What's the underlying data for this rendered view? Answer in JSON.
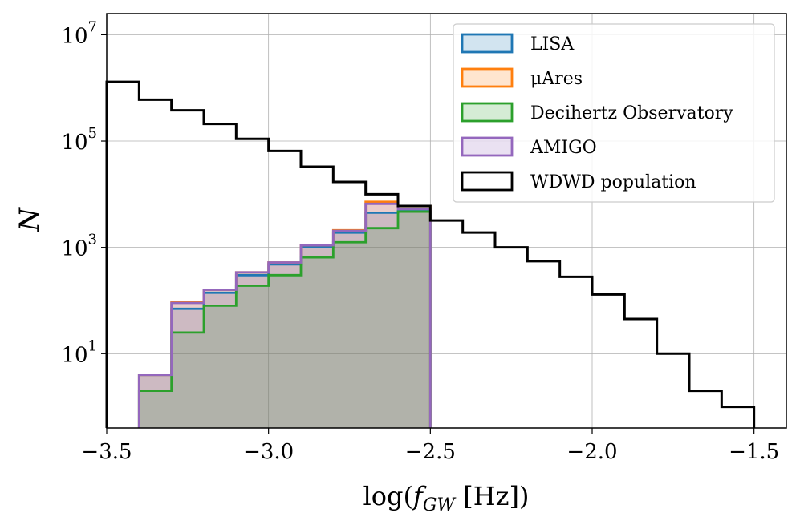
{
  "chart_data": {
    "type": "histogram",
    "xlabel": "log(f_GW [Hz])",
    "ylabel": "N",
    "xlim": [
      -3.5,
      -1.4
    ],
    "ylim": [
      0.4,
      25000000
    ],
    "yscale": "log",
    "grid": true,
    "legend_position": "top-right",
    "bin_edges": [
      -3.5,
      -3.4,
      -3.3,
      -3.2,
      -3.1,
      -3.0,
      -2.9,
      -2.8,
      -2.7,
      -2.6,
      -2.5,
      -2.4,
      -2.3,
      -2.2,
      -2.1,
      -2.0,
      -1.9,
      -1.8,
      -1.7,
      -1.6,
      -1.5
    ],
    "x_ticks": [
      {
        "value": -3.5,
        "label": "−3.5"
      },
      {
        "value": -3.0,
        "label": "−3.0"
      },
      {
        "value": -2.5,
        "label": "−2.5"
      },
      {
        "value": -2.0,
        "label": "−2.0"
      },
      {
        "value": -1.5,
        "label": "−1.5"
      }
    ],
    "y_ticks": [
      {
        "value": 10,
        "base": "10",
        "exp": "1"
      },
      {
        "value": 1000,
        "base": "10",
        "exp": "3"
      },
      {
        "value": 100000,
        "base": "10",
        "exp": "5"
      },
      {
        "value": 10000000,
        "base": "10",
        "exp": "7"
      }
    ],
    "series": [
      {
        "name": "LISA",
        "color": "#1f77b4",
        "values": [
          0,
          4,
          70,
          140,
          300,
          480,
          1000,
          1900,
          4500,
          4800,
          0,
          0,
          0,
          0,
          0,
          0,
          0,
          0,
          0,
          0
        ]
      },
      {
        "name": "μAres",
        "color": "#ff7f0e",
        "values": [
          0,
          4,
          95,
          160,
          340,
          520,
          1100,
          2100,
          7200,
          6000,
          0,
          0,
          0,
          0,
          0,
          0,
          0,
          0,
          0,
          0
        ]
      },
      {
        "name": "Decihertz Observatory",
        "color": "#2ca02c",
        "values": [
          0,
          2,
          25,
          80,
          190,
          300,
          650,
          1250,
          2300,
          4700,
          0,
          0,
          0,
          0,
          0,
          0,
          0,
          0,
          0,
          0
        ]
      },
      {
        "name": "AMIGO",
        "color": "#9467bd",
        "values": [
          0,
          4,
          90,
          160,
          340,
          520,
          1100,
          2050,
          6600,
          5300,
          0,
          0,
          0,
          0,
          0,
          0,
          0,
          0,
          0,
          0
        ]
      },
      {
        "name": "WDWD population",
        "color": "#000000",
        "values": [
          1300000,
          600000,
          380000,
          210000,
          110000,
          65000,
          33000,
          17000,
          10000,
          6000,
          3200,
          1900,
          1000,
          550,
          280,
          130,
          45,
          10,
          2,
          1
        ]
      }
    ]
  }
}
